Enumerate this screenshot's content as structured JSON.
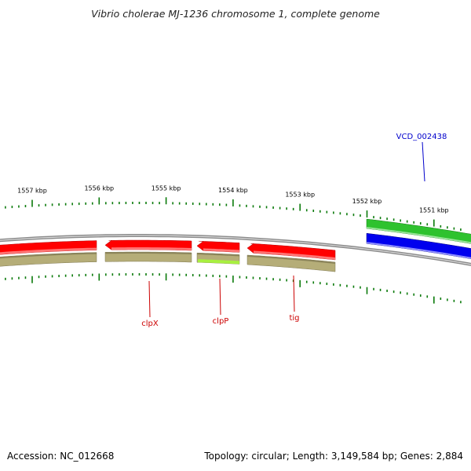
{
  "title": "Vibrio cholerae MJ-1236 chromosome 1, complete genome",
  "footer": {
    "accession": "Accession: NC_012668",
    "stats": "Topology: circular; Length: 3,149,584 bp; Genes: 2,884"
  },
  "colors": {
    "cds_red": "#ff0000",
    "gene_olive": "#b5ad78",
    "gene_lime": "#a8f040",
    "cds_green": "#2ec22e",
    "cds_blue": "#0000ee",
    "backbone": "#8a8a8a",
    "tick_green": "#0a7a0a",
    "label_red": "#cc0000",
    "label_blue": "#0000cc"
  },
  "axis": {
    "ticks": [
      {
        "label": "1557 kbp",
        "kbp": 1557
      },
      {
        "label": "1556 kbp",
        "kbp": 1556
      },
      {
        "label": "1555 kbp",
        "kbp": 1555
      },
      {
        "label": "1554 kbp",
        "kbp": 1554
      },
      {
        "label": "1553 kbp",
        "kbp": 1553
      },
      {
        "label": "1552 kbp",
        "kbp": 1552
      },
      {
        "label": "1551 kbp",
        "kbp": 1551
      }
    ]
  },
  "gene_labels": [
    {
      "name": "clpX",
      "color": "label_red"
    },
    {
      "name": "clpP",
      "color": "label_red"
    },
    {
      "name": "tig",
      "color": "label_red"
    },
    {
      "name": "VCD_002438",
      "color": "label_blue"
    }
  ]
}
